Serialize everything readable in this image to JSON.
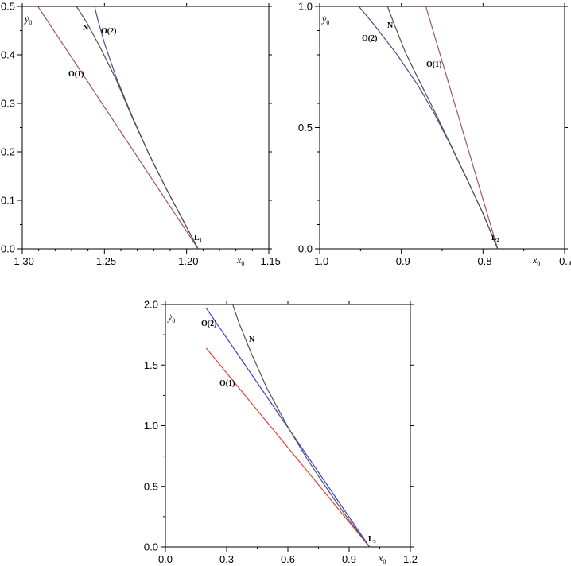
{
  "chart_data": [
    {
      "type": "line",
      "xlabel": "x0",
      "ylabel": "ẏ0",
      "xlim": [
        -1.3,
        -1.15
      ],
      "ylim": [
        0.0,
        0.5
      ],
      "xticks": [
        -1.3,
        -1.25,
        -1.2,
        -1.15
      ],
      "xtick_labels": [
        "-1.30",
        "-1.25",
        "-1.20",
        "-1.15"
      ],
      "yticks": [
        0.0,
        0.1,
        0.2,
        0.3,
        0.4,
        0.5
      ],
      "ytick_labels": [
        "0.0",
        "0.1",
        "0.2",
        "0.3",
        "0.4",
        "0.5"
      ],
      "point_label": "L1",
      "series": [
        {
          "name": "O(1)",
          "color": "#9e5a55",
          "x": [
            -1.193,
            -1.2905
          ],
          "y": [
            0.0,
            0.5
          ]
        },
        {
          "name": "O(2)",
          "color": "#4a4f8c",
          "x": [
            -1.193,
            -1.203,
            -1.213,
            -1.223,
            -1.233,
            -1.243,
            -1.25,
            -1.254,
            -1.256
          ],
          "y": [
            0.0,
            0.064,
            0.128,
            0.196,
            0.272,
            0.355,
            0.424,
            0.472,
            0.5
          ]
        },
        {
          "name": "N",
          "color": "#505050",
          "x": [
            -1.193,
            -1.203,
            -1.213,
            -1.223,
            -1.233,
            -1.243,
            -1.253,
            -1.261,
            -1.267
          ],
          "y": [
            0.0,
            0.064,
            0.128,
            0.196,
            0.27,
            0.35,
            0.418,
            0.468,
            0.5
          ]
        }
      ]
    },
    {
      "type": "line",
      "xlabel": "x0",
      "ylabel": "ẏ0",
      "xlim": [
        -1.0,
        -0.7
      ],
      "ylim": [
        0.0,
        1.0
      ],
      "xticks": [
        -1.0,
        -0.9,
        -0.8,
        -0.7
      ],
      "xtick_labels": [
        "-1.0",
        "-0.9",
        "-0.8",
        "-0.7"
      ],
      "yticks": [
        0.0,
        0.5,
        1.0
      ],
      "ytick_labels": [
        "0.0",
        "0.5",
        "1.0"
      ],
      "point_label": "L2",
      "series": [
        {
          "name": "O(1)",
          "color": "#9e5a55",
          "x": [
            -0.782,
            -0.87
          ],
          "y": [
            0.0,
            1.0
          ]
        },
        {
          "name": "O(2)",
          "color": "#4a4f8c",
          "x": [
            -0.782,
            -0.8,
            -0.82,
            -0.84,
            -0.86,
            -0.88,
            -0.905,
            -0.93,
            -0.952
          ],
          "y": [
            0.0,
            0.146,
            0.29,
            0.43,
            0.56,
            0.676,
            0.8,
            0.91,
            1.0
          ]
        },
        {
          "name": "N",
          "color": "#505050",
          "x": [
            -0.782,
            -0.8,
            -0.82,
            -0.84,
            -0.86,
            -0.88,
            -0.895,
            -0.908,
            -0.917
          ],
          "y": [
            0.0,
            0.146,
            0.29,
            0.432,
            0.572,
            0.706,
            0.81,
            0.92,
            1.0
          ]
        }
      ]
    },
    {
      "type": "line",
      "xlabel": "x0",
      "ylabel": "ẏ0",
      "xlim": [
        0.0,
        1.2
      ],
      "ylim": [
        0.0,
        2.0
      ],
      "xticks": [
        0.0,
        0.3,
        0.6,
        0.9,
        1.2
      ],
      "xtick_labels": [
        "0.0",
        "0.3",
        "0.6",
        "0.9",
        "1.2"
      ],
      "yticks": [
        0.0,
        0.5,
        1.0,
        1.5,
        2.0
      ],
      "ytick_labels": [
        "0.0",
        "0.5",
        "1.0",
        "1.5",
        "2.0"
      ],
      "point_label": "L3",
      "series": [
        {
          "name": "O(1)",
          "color": "#e8403e",
          "x": [
            1.0,
            0.2
          ],
          "y": [
            0.0,
            1.64
          ]
        },
        {
          "name": "O(2)",
          "color": "#3a3ad8",
          "x": [
            1.0,
            0.2
          ],
          "y": [
            0.0,
            1.97
          ]
        },
        {
          "name": "N",
          "color": "#555555",
          "x": [
            1.0,
            0.9,
            0.8,
            0.7,
            0.6,
            0.5,
            0.42,
            0.36,
            0.33
          ],
          "y": [
            0.0,
            0.22,
            0.46,
            0.71,
            0.99,
            1.3,
            1.6,
            1.85,
            2.0
          ]
        }
      ]
    }
  ]
}
